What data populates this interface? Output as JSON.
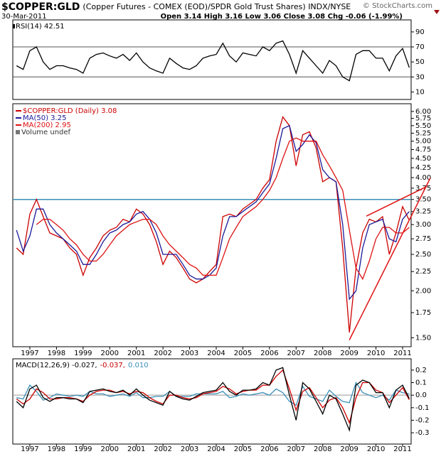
{
  "header": {
    "symbol": "$COPPER:GLD",
    "description": "(Copper Futures - COMEX (EOD)/SPDR Gold Trust Shares) INDX/NYSE",
    "credit": "© StockCharts.com",
    "date": "30-Mar-2011",
    "quote": "Open 3.14 High 3.16 Low 3.06 Close 3.08 Chg -0.06 (-1.99%)"
  },
  "chart_data": [
    {
      "type": "line",
      "legend": [
        "RSI(14) 42.51"
      ],
      "x": [
        1996.5,
        1996.75,
        1997,
        1997.25,
        1997.5,
        1997.75,
        1998,
        1998.25,
        1998.5,
        1998.75,
        1999,
        1999.25,
        1999.5,
        1999.75,
        2000,
        2000.25,
        2000.5,
        2000.75,
        2001,
        2001.25,
        2001.5,
        2001.75,
        2002,
        2002.25,
        2002.5,
        2002.75,
        2003,
        2003.25,
        2003.5,
        2003.75,
        2004,
        2004.25,
        2004.5,
        2004.75,
        2005,
        2005.25,
        2005.5,
        2005.75,
        2006,
        2006.25,
        2006.5,
        2006.75,
        2007,
        2007.25,
        2007.5,
        2007.75,
        2008,
        2008.25,
        2008.5,
        2008.75,
        2009,
        2009.25,
        2009.5,
        2009.75,
        2010,
        2010.25,
        2010.5,
        2010.75,
        2011,
        2011.25
      ],
      "series": [
        {
          "color": "#000000",
          "values": [
            45,
            40,
            65,
            70,
            50,
            40,
            45,
            45,
            42,
            40,
            35,
            55,
            60,
            62,
            58,
            55,
            60,
            52,
            62,
            50,
            42,
            38,
            35,
            55,
            48,
            42,
            40,
            45,
            55,
            58,
            60,
            75,
            58,
            50,
            62,
            60,
            58,
            70,
            65,
            75,
            78,
            60,
            35,
            65,
            55,
            45,
            35,
            52,
            45,
            30,
            25,
            60,
            65,
            65,
            55,
            55,
            38,
            58,
            68,
            42.51
          ]
        }
      ],
      "xlim": [
        1996.36,
        2011.32
      ],
      "ylim": [
        0,
        106
      ],
      "yticks": [
        10,
        30,
        50,
        70,
        90
      ],
      "reference_lines": [
        30,
        70
      ]
    },
    {
      "type": "line",
      "log_scale": true,
      "legend_note": "Volume undef",
      "x": [
        1996.5,
        1996.75,
        1997,
        1997.25,
        1997.5,
        1997.75,
        1998,
        1998.25,
        1998.5,
        1998.75,
        1999,
        1999.25,
        1999.5,
        1999.75,
        2000,
        2000.25,
        2000.5,
        2000.75,
        2001,
        2001.25,
        2001.5,
        2001.75,
        2002,
        2002.25,
        2002.5,
        2002.75,
        2003,
        2003.25,
        2003.5,
        2003.75,
        2004,
        2004.25,
        2004.5,
        2004.75,
        2005,
        2005.25,
        2005.5,
        2005.75,
        2006,
        2006.25,
        2006.5,
        2006.75,
        2007,
        2007.25,
        2007.5,
        2007.75,
        2008,
        2008.25,
        2008.5,
        2008.75,
        2009,
        2009.25,
        2009.5,
        2009.75,
        2010,
        2010.25,
        2010.5,
        2010.75,
        2011,
        2011.25
      ],
      "series": [
        {
          "name": "$COPPER:GLD (Daily) 3.08",
          "color": "#cc0000",
          "values": [
            2.6,
            2.5,
            3.2,
            3.5,
            3.15,
            2.85,
            2.8,
            2.75,
            2.6,
            2.5,
            2.2,
            2.45,
            2.6,
            2.8,
            2.9,
            2.95,
            3.1,
            3.05,
            3.3,
            3.2,
            3.0,
            2.7,
            2.35,
            2.55,
            2.45,
            2.3,
            2.15,
            2.1,
            2.15,
            2.25,
            2.35,
            3.15,
            3.2,
            3.15,
            3.3,
            3.4,
            3.5,
            3.75,
            3.95,
            5.0,
            5.8,
            5.5,
            4.3,
            5.2,
            5.3,
            4.8,
            3.9,
            4.0,
            3.9,
            2.6,
            1.55,
            2.3,
            2.85,
            3.1,
            3.05,
            3.15,
            2.5,
            2.85,
            3.35,
            3.08
          ]
        },
        {
          "name": "MA(50) 3.25",
          "color": "#1a1a99",
          "values": [
            2.9,
            2.55,
            2.8,
            3.3,
            3.3,
            3.0,
            2.85,
            2.75,
            2.65,
            2.55,
            2.35,
            2.35,
            2.5,
            2.7,
            2.85,
            2.9,
            3.0,
            3.05,
            3.2,
            3.25,
            3.1,
            2.85,
            2.5,
            2.5,
            2.5,
            2.35,
            2.2,
            2.15,
            2.15,
            2.2,
            2.3,
            2.8,
            3.15,
            3.15,
            3.25,
            3.35,
            3.45,
            3.65,
            3.85,
            4.5,
            5.4,
            5.5,
            4.7,
            4.9,
            5.2,
            4.95,
            4.2,
            4.0,
            3.9,
            3.0,
            1.9,
            2.0,
            2.6,
            3.0,
            3.05,
            3.1,
            2.75,
            2.7,
            3.1,
            3.25
          ]
        },
        {
          "name": "MA(200) 2.95",
          "color": "#dd1111",
          "values": [
            null,
            null,
            null,
            3.0,
            3.1,
            3.1,
            3.0,
            2.9,
            2.75,
            2.65,
            2.5,
            2.4,
            2.4,
            2.5,
            2.65,
            2.8,
            2.9,
            3.0,
            3.05,
            3.1,
            3.1,
            3.0,
            2.8,
            2.65,
            2.55,
            2.45,
            2.35,
            2.3,
            2.2,
            2.2,
            2.2,
            2.45,
            2.75,
            2.95,
            3.15,
            3.25,
            3.35,
            3.5,
            3.7,
            4.0,
            4.5,
            5.0,
            5.1,
            5.0,
            5.0,
            5.0,
            4.6,
            4.3,
            4.0,
            3.7,
            2.9,
            2.3,
            2.15,
            2.4,
            2.75,
            2.95,
            2.95,
            2.85,
            2.85,
            2.95
          ]
        }
      ],
      "hlines": [
        {
          "value": 3.5,
          "color": "#3a8fb7"
        }
      ],
      "trendlines": [
        {
          "x": [
            2009.0,
            2012.04
          ],
          "values": [
            1.48,
            3.99
          ],
          "color": "#e01010"
        },
        {
          "x": [
            2009.64,
            2011.91
          ],
          "values": [
            3.16,
            3.79
          ],
          "color": "#e01010"
        }
      ],
      "xlim": [
        1996.36,
        2011.32
      ],
      "ylim": [
        1.42,
        6.29
      ],
      "xticks": [
        1997,
        1998,
        1999,
        2000,
        2001,
        2002,
        2003,
        2004,
        2005,
        2006,
        2007,
        2008,
        2009,
        2010,
        2011
      ],
      "yticks": [
        {
          "value": 1.5,
          "label": "1.50"
        },
        {
          "value": 1.75,
          "label": "1.75"
        },
        {
          "value": 2,
          "label": "2.00"
        },
        {
          "value": 2.25,
          "label": "2.25"
        },
        {
          "value": 2.5,
          "label": "2.50"
        },
        {
          "value": 2.75,
          "label": "2.75"
        },
        {
          "value": 3,
          "label": "3.00"
        },
        {
          "value": 3.25,
          "label": "3.25"
        },
        {
          "value": 3.5,
          "label": "3.50"
        },
        {
          "value": 3.75,
          "label": "3.75"
        },
        {
          "value": 4,
          "label": "4.00"
        },
        {
          "value": 4.25,
          "label": "4.25"
        },
        {
          "value": 4.5,
          "label": "4.50"
        },
        {
          "value": 4.75,
          "label": "4.75"
        },
        {
          "value": 5,
          "label": "5.00"
        },
        {
          "value": 5.25,
          "label": "5.25"
        },
        {
          "value": 5.5,
          "label": "5.50"
        },
        {
          "value": 5.75,
          "label": "5.75"
        },
        {
          "value": 6,
          "label": "6.00"
        }
      ]
    },
    {
      "type": "line",
      "legend": [
        "MACD(12,26,9) -0.027,",
        "-0.037,",
        "0.010"
      ],
      "legend_colors": [
        "#000000",
        "#cc0000",
        "#3a8fb7"
      ],
      "x": [
        1996.5,
        1996.75,
        1997,
        1997.25,
        1997.5,
        1997.75,
        1998,
        1998.25,
        1998.5,
        1998.75,
        1999,
        1999.25,
        1999.5,
        1999.75,
        2000,
        2000.25,
        2000.5,
        2000.75,
        2001,
        2001.25,
        2001.5,
        2001.75,
        2002,
        2002.25,
        2002.5,
        2002.75,
        2003,
        2003.25,
        2003.5,
        2003.75,
        2004,
        2004.25,
        2004.5,
        2004.75,
        2005,
        2005.25,
        2005.5,
        2005.75,
        2006,
        2006.25,
        2006.5,
        2006.75,
        2007,
        2007.25,
        2007.5,
        2007.75,
        2008,
        2008.25,
        2008.5,
        2008.75,
        2009,
        2009.25,
        2009.5,
        2009.75,
        2010,
        2010.25,
        2010.5,
        2010.75,
        2011,
        2011.25
      ],
      "series": [
        {
          "color": "#3a8fb7",
          "values": [
            -0.02,
            -0.03,
            0.08,
            0.03,
            -0.04,
            -0.02,
            0.01,
            0,
            -0.01,
            0,
            -0.01,
            0.03,
            0.01,
            0.01,
            -0.01,
            0,
            0.01,
            -0.01,
            0.02,
            -0.02,
            -0.02,
            -0.01,
            -0.01,
            0.03,
            -0.01,
            -0.01,
            -0.01,
            0.01,
            0.01,
            0.01,
            0.01,
            0.03,
            -0.02,
            -0.01,
            0.01,
            0,
            0.01,
            0.02,
            0,
            0.05,
            0.02,
            -0.05,
            -0.08,
            0.07,
            -0.01,
            -0.03,
            -0.05,
            0.04,
            -0.01,
            -0.05,
            -0.06,
            0.1,
            0.02,
            0,
            -0.02,
            0,
            -0.04,
            0.04,
            0.02,
            0.01
          ]
        },
        {
          "color": "#cc0000",
          "values": [
            -0.03,
            -0.07,
            -0.03,
            0.05,
            0.02,
            -0.03,
            -0.03,
            -0.02,
            -0.02,
            -0.03,
            -0.05,
            0.0,
            0.03,
            0.04,
            0.04,
            0.02,
            0.03,
            0.01,
            0.03,
            0.02,
            -0.02,
            -0.05,
            -0.07,
            0.0,
            0.0,
            -0.02,
            -0.03,
            -0.02,
            0.01,
            0.02,
            0.03,
            0.07,
            0.05,
            0.01,
            0.03,
            0.04,
            0.04,
            0.08,
            0.08,
            0.15,
            0.2,
            0.05,
            -0.12,
            0.03,
            0.06,
            -0.02,
            -0.1,
            -0.04,
            -0.02,
            -0.1,
            -0.22,
            -0.02,
            0.1,
            0.1,
            0.04,
            0.02,
            -0.06,
            0.0,
            0.06,
            -0.037
          ]
        },
        {
          "color": "#000000",
          "values": [
            -0.05,
            -0.1,
            0.05,
            0.08,
            -0.02,
            -0.05,
            -0.02,
            -0.02,
            -0.03,
            -0.03,
            -0.06,
            0.03,
            0.04,
            0.05,
            0.03,
            0.02,
            0.04,
            0.0,
            0.05,
            0.0,
            -0.04,
            -0.06,
            -0.08,
            0.03,
            -0.01,
            -0.03,
            -0.04,
            -0.01,
            0.02,
            0.03,
            0.04,
            0.1,
            0.03,
            0.0,
            0.04,
            0.04,
            0.05,
            0.1,
            0.08,
            0.2,
            0.22,
            0.0,
            -0.2,
            0.1,
            0.05,
            -0.05,
            -0.15,
            0.0,
            -0.03,
            -0.15,
            -0.28,
            0.08,
            0.12,
            0.1,
            0.02,
            0.02,
            -0.1,
            0.04,
            0.08,
            -0.027
          ]
        }
      ],
      "xlim": [
        1996.36,
        2011.32
      ],
      "ylim": [
        -0.39,
        0.29
      ],
      "xticks": [
        1997,
        1998,
        1999,
        2000,
        2001,
        2002,
        2003,
        2004,
        2005,
        2006,
        2007,
        2008,
        2009,
        2010,
        2011
      ],
      "yticks": [
        0.2,
        0.1,
        {
          "value": 0,
          "label": "0.0"
        },
        -0.1,
        -0.2,
        -0.3
      ],
      "zero_line": true
    }
  ]
}
